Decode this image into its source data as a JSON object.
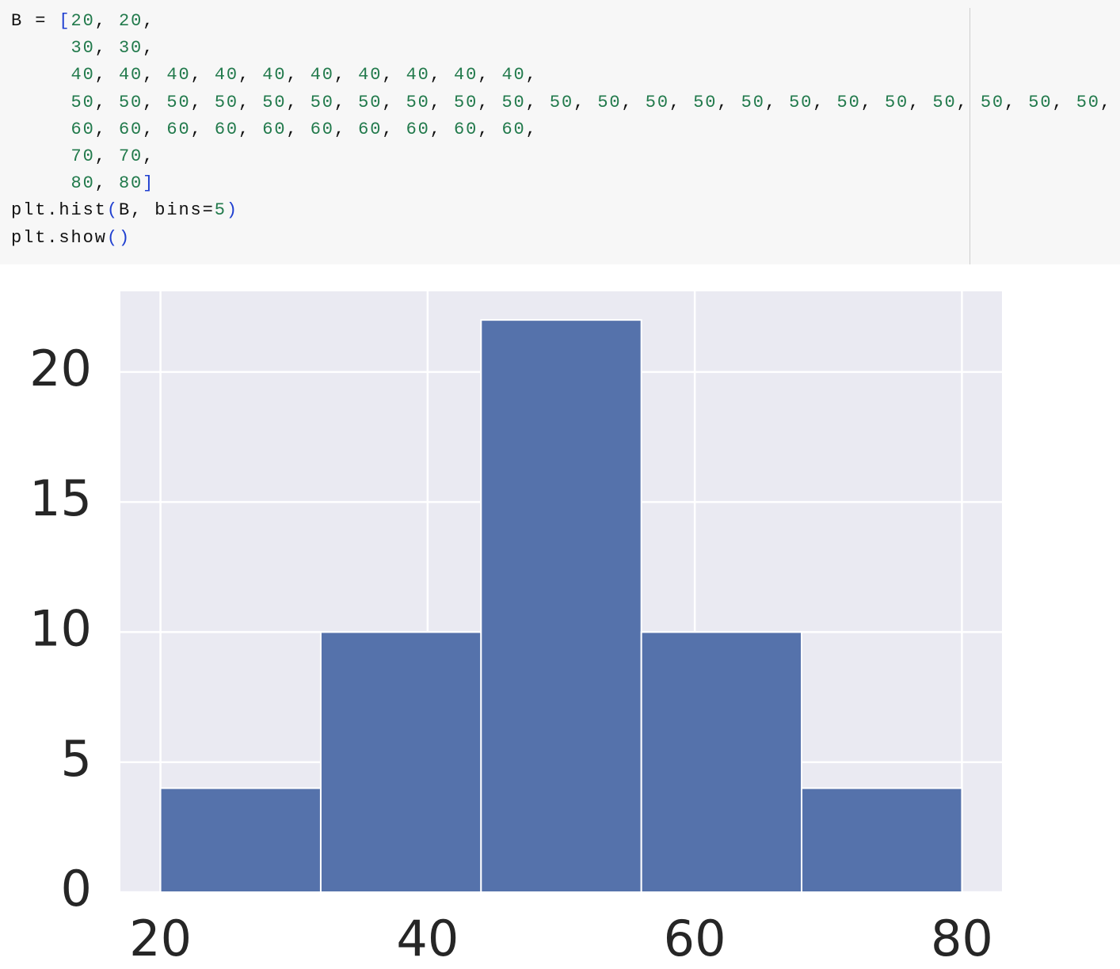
{
  "code": {
    "lines": [
      "B = [20, 20,",
      "     30, 30,",
      "     40, 40, 40, 40, 40, 40, 40, 40, 40, 40,",
      "     50, 50, 50, 50, 50, 50, 50, 50, 50, 50, 50, 50, 50, 50, 50, 50, 50, 50, 50, 50, 50, 50,",
      "     60, 60, 60, 60, 60, 60, 60, 60, 60, 60,",
      "     70, 70,",
      "     80, 80]",
      "plt.hist(B, bins=5)",
      "plt.show()"
    ]
  },
  "chart_data": {
    "type": "histogram",
    "bins": [
      20,
      32,
      44,
      56,
      68,
      80
    ],
    "counts": [
      4,
      10,
      22,
      10,
      4
    ],
    "color": "#5572ab",
    "xlim": [
      17,
      83
    ],
    "xticks": [
      20,
      40,
      60,
      80
    ],
    "ylim": [
      0,
      23.1
    ],
    "yticks": [
      0,
      5,
      10,
      15,
      20
    ],
    "grid": true
  }
}
